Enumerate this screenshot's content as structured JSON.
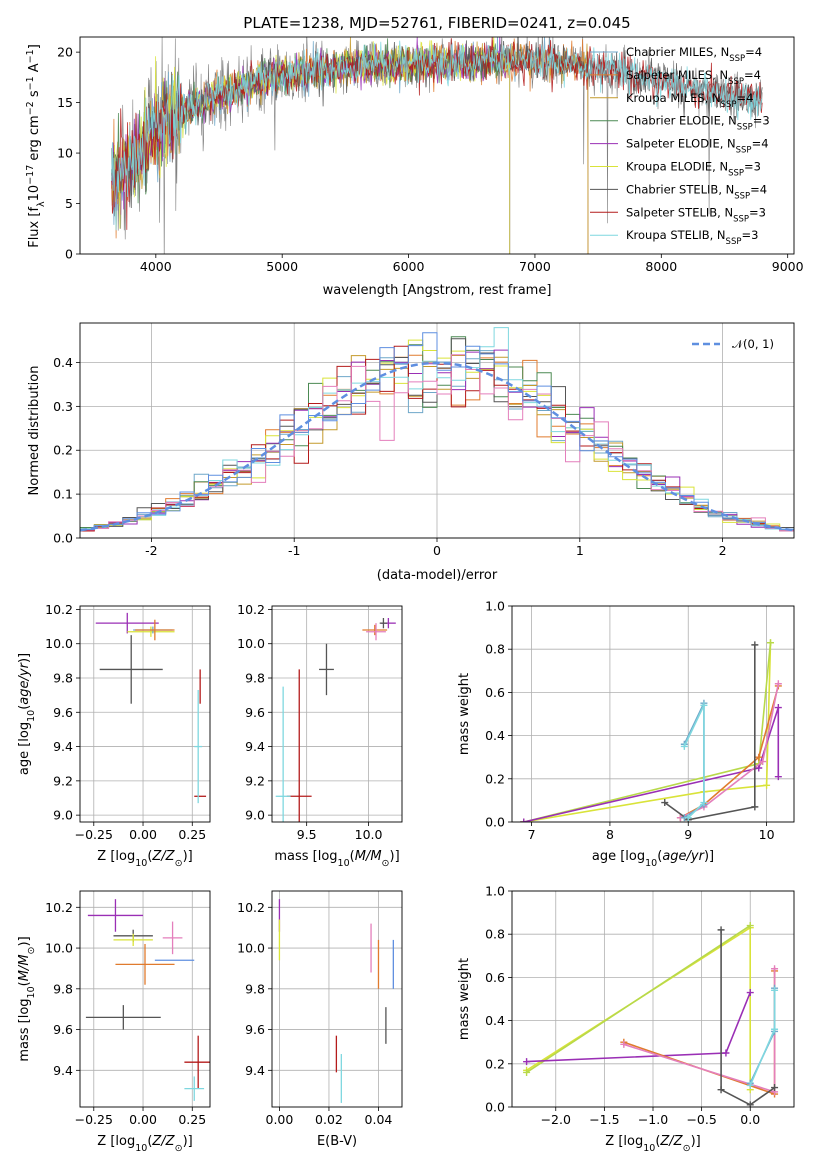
{
  "colors": {
    "chabrier_miles": "#6fa7c9",
    "salpeter_miles": "#e07b2e",
    "kroupa_miles": "#c49a2c",
    "chabrier_elodie": "#4c8a53",
    "salpeter_elodie": "#9a2fb5",
    "kroupa_elodie": "#d9e339",
    "chabrier_stelib": "#555555",
    "salpeter_stelib": "#b41b1b",
    "kroupa_stelib": "#7fd7df",
    "pink": "#e47fbc",
    "blue": "#5f8fe0",
    "lime": "#b8d94a"
  },
  "chart_data": [
    {
      "id": "spectrum",
      "type": "line",
      "title": "PLATE=1238, MJD=52761, FIBERID=0241, z=0.045",
      "xlabel": "wavelength [Angstrom, rest frame]",
      "ylabel": "Flux [f_λ10^-17 erg cm^-2 s^-1 A^-1]",
      "xlim": [
        3400,
        9050
      ],
      "ylim": [
        0,
        21.5
      ],
      "xticks": [
        4000,
        5000,
        6000,
        7000,
        8000,
        9000
      ],
      "yticks": [
        0,
        5,
        10,
        15,
        20
      ],
      "legend_position": "top-right",
      "series": [
        {
          "name": "Chabrier MILES, N_SSP=4",
          "label_main": "Chabrier MILES, N",
          "label_sub": "SSP",
          "label_tail": "=4",
          "color_key": "chabrier_miles"
        },
        {
          "name": "Salpeter MILES, N_SSP=4",
          "label_main": "Salpeter MILES, N",
          "label_sub": "SSP",
          "label_tail": "=4",
          "color_key": "salpeter_miles"
        },
        {
          "name": "Kroupa MILES, N_SSP=4",
          "label_main": "Kroupa MILES, N",
          "label_sub": "SSP",
          "label_tail": "=4",
          "color_key": "kroupa_miles"
        },
        {
          "name": "Chabrier ELODIE, N_SSP=3",
          "label_main": "Chabrier ELODIE, N",
          "label_sub": "SSP",
          "label_tail": "=3",
          "color_key": "chabrier_elodie"
        },
        {
          "name": "Salpeter ELODIE, N_SSP=4",
          "label_main": "Salpeter ELODIE, N",
          "label_sub": "SSP",
          "label_tail": "=4",
          "color_key": "salpeter_elodie"
        },
        {
          "name": "Kroupa ELODIE, N_SSP=3",
          "label_main": "Kroupa ELODIE, N",
          "label_sub": "SSP",
          "label_tail": "=3",
          "color_key": "kroupa_elodie"
        },
        {
          "name": "Chabrier STELIB, N_SSP=4",
          "label_main": "Chabrier STELIB, N",
          "label_sub": "SSP",
          "label_tail": "=4",
          "color_key": "chabrier_stelib"
        },
        {
          "name": "Salpeter STELIB, N_SSP=3",
          "label_main": "Salpeter STELIB, N",
          "label_sub": "SSP",
          "label_tail": "=3",
          "color_key": "salpeter_stelib"
        },
        {
          "name": "Kroupa STELIB, N_SSP=3",
          "label_main": "Kroupa STELIB, N",
          "label_sub": "SSP",
          "label_tail": "=3",
          "color_key": "kroupa_stelib"
        }
      ],
      "continuum": [
        [
          3650,
          7.5
        ],
        [
          3800,
          8.5
        ],
        [
          3950,
          12.0
        ],
        [
          4200,
          14.0
        ],
        [
          4500,
          15.8
        ],
        [
          5000,
          17.8
        ],
        [
          5500,
          18.6
        ],
        [
          6000,
          18.8
        ],
        [
          6500,
          19.0
        ],
        [
          7000,
          19.3
        ],
        [
          7500,
          18.5
        ],
        [
          8000,
          17.0
        ],
        [
          8400,
          16.0
        ],
        [
          8800,
          15.3
        ]
      ],
      "model_range": {
        "miles": [
          3650,
          7420
        ],
        "elodie": [
          3650,
          6800
        ],
        "stelib": [
          3650,
          8800
        ]
      }
    },
    {
      "id": "residual-histogram",
      "type": "bar",
      "xlabel": "(data-model)/error",
      "ylabel": "Normed distribution",
      "xlim": [
        -2.5,
        2.5
      ],
      "ylim": [
        0,
        0.49
      ],
      "xticks": [
        -2,
        -1,
        0,
        1,
        2
      ],
      "yticks": [
        0.0,
        0.1,
        0.2,
        0.3,
        0.4
      ],
      "bin_width": 0.1,
      "legend_position": "top-right",
      "reference_curve": {
        "name": "N(0,1)",
        "label": "𝒩(0, 1)",
        "mean": 0,
        "sigma": 1,
        "color": "#5f8fe0"
      },
      "series_colors": [
        "chabrier_miles",
        "salpeter_miles",
        "kroupa_miles",
        "chabrier_elodie",
        "salpeter_elodie",
        "kroupa_elodie",
        "chabrier_stelib",
        "salpeter_stelib",
        "kroupa_stelib",
        "pink",
        "blue"
      ]
    },
    {
      "id": "age-vs-z",
      "type": "scatter",
      "xlabel": "Z [log10(Z/Z⊙)]",
      "ylabel": "age  [log10(age/yr)]",
      "xlim": [
        -0.32,
        0.34
      ],
      "ylim": [
        8.96,
        10.22
      ],
      "xticks": [
        -0.25,
        0.0,
        0.25
      ],
      "xticklabels": [
        "−0.25",
        "0.00",
        "0.25"
      ],
      "yticks": [
        9.0,
        9.2,
        9.4,
        9.6,
        9.8,
        10.0,
        10.2
      ],
      "points": [
        {
          "x": -0.08,
          "y": 10.12,
          "xerr": 0.16,
          "yerr": 0.06,
          "color_key": "salpeter_elodie"
        },
        {
          "x": 0.04,
          "y": 10.07,
          "xerr": 0.12,
          "yerr": 0.03,
          "color_key": "kroupa_elodie"
        },
        {
          "x": 0.05,
          "y": 10.08,
          "xerr": 0.1,
          "yerr": 0.02,
          "color_key": "chabrier_miles"
        },
        {
          "x": 0.06,
          "y": 10.08,
          "xerr": 0.1,
          "yerr": 0.06,
          "color_key": "salpeter_miles"
        },
        {
          "x": -0.06,
          "y": 9.85,
          "xerr": 0.16,
          "yerr": 0.2,
          "color_key": "chabrier_stelib"
        },
        {
          "x": 0.29,
          "y": 9.75,
          "xerr": 0.0,
          "yerr": 0.1,
          "color_key": "salpeter_stelib"
        },
        {
          "x": 0.29,
          "y": 9.11,
          "xerr": 0.03,
          "yerr": 0.0,
          "color_key": "salpeter_stelib"
        },
        {
          "x": 0.28,
          "y": 9.4,
          "xerr": 0.02,
          "yerr": 0.33,
          "color_key": "kroupa_stelib"
        }
      ]
    },
    {
      "id": "age-vs-mass",
      "type": "scatter",
      "xlabel": "mass [log10(M/M⊙)]",
      "ylabel": "",
      "xlim": [
        9.22,
        10.27
      ],
      "ylim": [
        8.96,
        10.22
      ],
      "xticks": [
        9.5,
        10.0
      ],
      "xticklabels": [
        "9.5",
        "10.0"
      ],
      "yticks": [
        9.0,
        9.2,
        9.4,
        9.6,
        9.8,
        10.0,
        10.2
      ],
      "points": [
        {
          "x": 10.16,
          "y": 10.12,
          "xerr": 0.06,
          "yerr": 0.03,
          "color_key": "salpeter_elodie"
        },
        {
          "x": 10.05,
          "y": 10.08,
          "xerr": 0.1,
          "yerr": 0.03,
          "color_key": "salpeter_miles"
        },
        {
          "x": 10.06,
          "y": 10.07,
          "xerr": 0.08,
          "yerr": 0.05,
          "color_key": "pink"
        },
        {
          "x": 10.12,
          "y": 10.12,
          "xerr": 0.03,
          "yerr": 0.03,
          "color_key": "chabrier_stelib"
        },
        {
          "x": 9.66,
          "y": 9.85,
          "xerr": 0.06,
          "yerr": 0.15,
          "color_key": "chabrier_stelib"
        },
        {
          "x": 9.44,
          "y": 9.11,
          "xerr": 0.1,
          "yerr": 0.74,
          "color_key": "salpeter_stelib"
        },
        {
          "x": 9.31,
          "y": 9.11,
          "xerr": 0.06,
          "yerr": 0.64,
          "color_key": "kroupa_stelib"
        }
      ]
    },
    {
      "id": "mass-weight-vs-age",
      "type": "line",
      "xlabel": "age  [log10(age/yr)]",
      "ylabel": "mass weight",
      "xlim": [
        6.75,
        10.35
      ],
      "ylim": [
        0,
        1.0
      ],
      "xticks": [
        7,
        8,
        9,
        10
      ],
      "yticks": [
        0.0,
        0.2,
        0.4,
        0.6,
        0.8,
        1.0
      ],
      "series": [
        {
          "color_key": "kroupa_elodie",
          "points": [
            [
              6.9,
              0.0
            ],
            [
              9.2,
              0.14
            ],
            [
              10.0,
              0.17
            ],
            [
              10.05,
              0.83
            ]
          ]
        },
        {
          "color_key": "lime",
          "points": [
            [
              6.9,
              0.0
            ],
            [
              9.9,
              0.27
            ],
            [
              10.05,
              0.83
            ]
          ]
        },
        {
          "color_key": "salpeter_elodie",
          "points": [
            [
              6.9,
              0.0
            ],
            [
              9.9,
              0.25
            ],
            [
              10.15,
              0.53
            ],
            [
              10.15,
              0.21
            ]
          ]
        },
        {
          "color_key": "salpeter_miles",
          "points": [
            [
              8.9,
              0.02
            ],
            [
              9.2,
              0.08
            ],
            [
              9.9,
              0.3
            ],
            [
              10.15,
              0.63
            ]
          ]
        },
        {
          "color_key": "pink",
          "points": [
            [
              8.9,
              0.02
            ],
            [
              9.2,
              0.07
            ],
            [
              9.95,
              0.28
            ],
            [
              10.15,
              0.64
            ]
          ]
        },
        {
          "color_key": "chabrier_stelib",
          "points": [
            [
              8.7,
              0.09
            ],
            [
              9.0,
              0.01
            ],
            [
              9.85,
              0.07
            ],
            [
              9.85,
              0.82
            ]
          ]
        },
        {
          "color_key": "chabrier_miles",
          "points": [
            [
              8.95,
              0.36
            ],
            [
              9.2,
              0.55
            ],
            [
              9.2,
              0.08
            ],
            [
              8.95,
              0.02
            ]
          ]
        },
        {
          "color_key": "kroupa_stelib",
          "points": [
            [
              8.95,
              0.35
            ],
            [
              9.2,
              0.54
            ],
            [
              9.2,
              0.09
            ],
            [
              9.0,
              0.02
            ]
          ]
        }
      ]
    },
    {
      "id": "mass-vs-z",
      "type": "scatter",
      "xlabel": "Z [log10(Z/Z⊙)]",
      "ylabel": "mass [log10(M/M⊙)]",
      "xlim": [
        -0.32,
        0.34
      ],
      "ylim": [
        9.22,
        10.28
      ],
      "xticks": [
        -0.25,
        0.0,
        0.25
      ],
      "xticklabels": [
        "−0.25",
        "0.00",
        "0.25"
      ],
      "yticks": [
        9.4,
        9.6,
        9.8,
        10.0,
        10.2
      ],
      "points": [
        {
          "x": -0.14,
          "y": 10.16,
          "xerr": 0.14,
          "yerr": 0.08,
          "color_key": "salpeter_elodie"
        },
        {
          "x": 0.15,
          "y": 10.05,
          "xerr": 0.05,
          "yerr": 0.08,
          "color_key": "pink"
        },
        {
          "x": -0.05,
          "y": 10.06,
          "xerr": 0.1,
          "yerr": 0.03,
          "color_key": "chabrier_stelib"
        },
        {
          "x": -0.05,
          "y": 10.04,
          "xerr": 0.1,
          "yerr": 0.03,
          "color_key": "kroupa_elodie"
        },
        {
          "x": 0.16,
          "y": 9.94,
          "xerr": 0.1,
          "yerr": 0.0,
          "color_key": "blue"
        },
        {
          "x": 0.01,
          "y": 9.92,
          "xerr": 0.15,
          "yerr": 0.1,
          "color_key": "salpeter_miles"
        },
        {
          "x": -0.1,
          "y": 9.66,
          "xerr": 0.19,
          "yerr": 0.06,
          "color_key": "chabrier_stelib"
        },
        {
          "x": 0.28,
          "y": 9.44,
          "xerr": 0.07,
          "yerr": 0.13,
          "color_key": "salpeter_stelib"
        },
        {
          "x": 0.26,
          "y": 9.31,
          "xerr": 0.05,
          "yerr": 0.06,
          "color_key": "kroupa_stelib"
        }
      ]
    },
    {
      "id": "mass-vs-ebv",
      "type": "scatter",
      "xlabel": "E(B-V)",
      "ylabel": "",
      "xlim": [
        -0.003,
        0.0495
      ],
      "ylim": [
        9.22,
        10.28
      ],
      "xticks": [
        0.0,
        0.02,
        0.04
      ],
      "xticklabels": [
        "0.00",
        "0.02",
        "0.04"
      ],
      "yticks": [
        9.4,
        9.6,
        9.8,
        10.0,
        10.2
      ],
      "points": [
        {
          "x": 0.0,
          "y": 10.16,
          "xerr": 0.0,
          "yerr": 0.08,
          "color_key": "salpeter_elodie"
        },
        {
          "x": 0.0,
          "y": 10.04,
          "xerr": 0.0,
          "yerr": 0.1,
          "color_key": "kroupa_elodie"
        },
        {
          "x": 0.037,
          "y": 10.0,
          "xerr": 0.0,
          "yerr": 0.12,
          "color_key": "pink"
        },
        {
          "x": 0.04,
          "y": 9.92,
          "xerr": 0.0,
          "yerr": 0.12,
          "color_key": "salpeter_miles"
        },
        {
          "x": 0.046,
          "y": 9.92,
          "xerr": 0.0,
          "yerr": 0.12,
          "color_key": "blue"
        },
        {
          "x": 0.043,
          "y": 9.62,
          "xerr": 0.0,
          "yerr": 0.09,
          "color_key": "chabrier_stelib"
        },
        {
          "x": 0.023,
          "y": 9.48,
          "xerr": 0.0,
          "yerr": 0.09,
          "color_key": "salpeter_stelib"
        },
        {
          "x": 0.025,
          "y": 9.36,
          "xerr": 0.0,
          "yerr": 0.12,
          "color_key": "kroupa_stelib"
        }
      ]
    },
    {
      "id": "mass-weight-vs-z",
      "type": "line",
      "xlabel": "Z [log10(Z/Z⊙)]",
      "ylabel": "mass weight",
      "xlim": [
        -2.45,
        0.45
      ],
      "ylim": [
        0,
        1.0
      ],
      "xticks": [
        -2.0,
        -1.5,
        -1.0,
        -0.5,
        0.0
      ],
      "xticklabels": [
        "−2.0",
        "−1.5",
        "−1.0",
        "−0.5",
        "0.0"
      ],
      "yticks": [
        0.0,
        0.2,
        0.4,
        0.6,
        0.8,
        1.0
      ],
      "series": [
        {
          "color_key": "kroupa_elodie",
          "points": [
            [
              -2.3,
              0.17
            ],
            [
              0.0,
              0.83
            ],
            [
              0.0,
              0.08
            ]
          ]
        },
        {
          "color_key": "lime",
          "points": [
            [
              -2.3,
              0.16
            ],
            [
              0.0,
              0.84
            ]
          ]
        },
        {
          "color_key": "salpeter_elodie",
          "points": [
            [
              -2.3,
              0.21
            ],
            [
              -0.25,
              0.25
            ],
            [
              0.0,
              0.53
            ]
          ]
        },
        {
          "color_key": "salpeter_miles",
          "points": [
            [
              -1.3,
              0.3
            ],
            [
              0.25,
              0.06
            ],
            [
              0.25,
              0.63
            ]
          ]
        },
        {
          "color_key": "pink",
          "points": [
            [
              -1.3,
              0.29
            ],
            [
              0.25,
              0.07
            ],
            [
              0.25,
              0.64
            ]
          ]
        },
        {
          "color_key": "chabrier_stelib",
          "points": [
            [
              -0.3,
              0.82
            ],
            [
              -0.3,
              0.08
            ],
            [
              0.0,
              0.01
            ],
            [
              0.25,
              0.09
            ]
          ]
        },
        {
          "color_key": "chabrier_miles",
          "points": [
            [
              0.0,
              0.11
            ],
            [
              0.25,
              0.35
            ],
            [
              0.25,
              0.55
            ]
          ]
        },
        {
          "color_key": "kroupa_stelib",
          "points": [
            [
              0.0,
              0.1
            ],
            [
              0.25,
              0.36
            ],
            [
              0.25,
              0.54
            ]
          ]
        }
      ]
    }
  ]
}
